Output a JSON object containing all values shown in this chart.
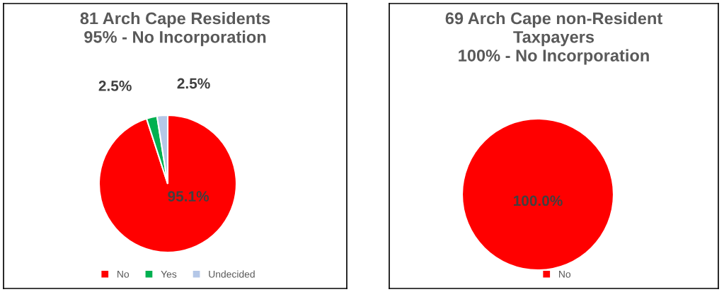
{
  "chart_data": [
    {
      "type": "pie",
      "title": "81 Arch Cape Residents\n95% - No Incorporation",
      "categories": [
        "No",
        "Yes",
        "Undecided"
      ],
      "values": [
        95.1,
        2.5,
        2.5
      ],
      "colors": [
        "#ff0000",
        "#00b050",
        "#b4c7e7"
      ],
      "value_labels": [
        "95.1%",
        "2.5%",
        "2.5%"
      ],
      "legend": "bottom"
    },
    {
      "type": "pie",
      "title": "69 Arch Cape non-Resident\nTaxpayers\n100% - No Incorporation",
      "categories": [
        "No"
      ],
      "values": [
        100.0
      ],
      "colors": [
        "#ff0000"
      ],
      "value_labels": [
        "100.0%"
      ],
      "legend": "bottom"
    }
  ]
}
